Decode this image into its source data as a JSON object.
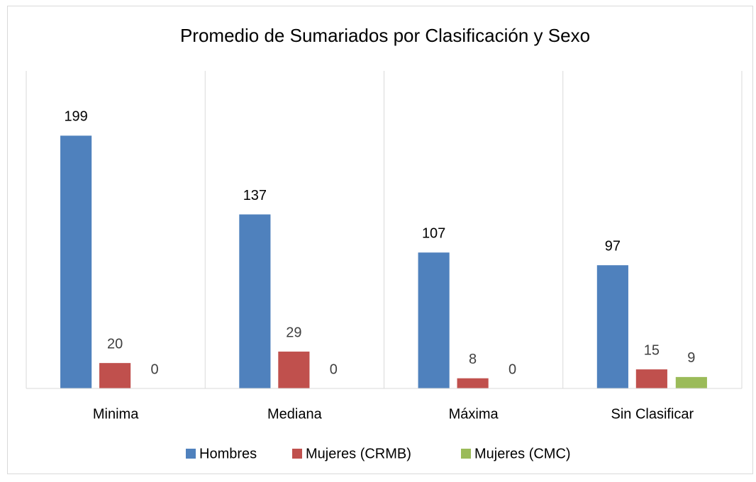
{
  "chart_data": {
    "type": "bar",
    "title": "Promedio de Sumariados por Clasificación y Sexo",
    "categories": [
      "Minima",
      "Mediana",
      "Máxima",
      "Sin Clasificar"
    ],
    "series": [
      {
        "name": "Hombres",
        "color": "#4f81bd",
        "values": [
          199,
          137,
          107,
          97
        ]
      },
      {
        "name": "Mujeres (CRMB)",
        "color": "#c0504d",
        "values": [
          20,
          29,
          8,
          15
        ]
      },
      {
        "name": "Mujeres (CMC)",
        "color": "#9bbb59",
        "values": [
          0,
          0,
          0,
          9
        ]
      }
    ],
    "ylim": [
      0,
      250
    ],
    "legend": "bottom"
  }
}
